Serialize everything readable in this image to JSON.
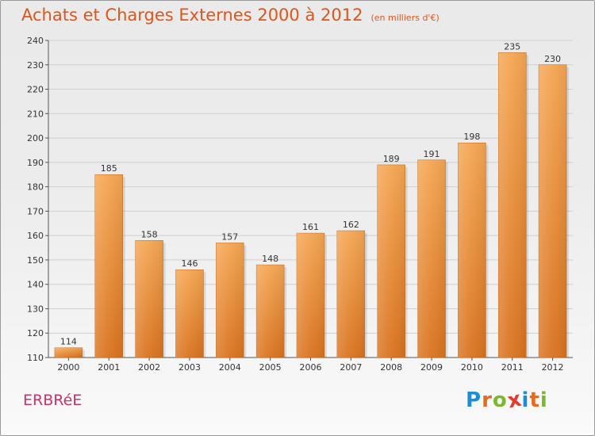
{
  "title": "Achats et Charges Externes 2000 à 2012",
  "subtitle": "(en milliers d'€)",
  "town": "ERBRéE",
  "logo": {
    "text": "Proxiti",
    "letters": [
      {
        "ch": "P",
        "color": "#1a8fd6"
      },
      {
        "ch": "r",
        "color": "#e86a1c"
      },
      {
        "ch": "o",
        "color": "#7cb82f"
      },
      {
        "ch": "x",
        "color": "#e33b2f"
      },
      {
        "ch": "i",
        "color": "#1a8fd6"
      },
      {
        "ch": "t",
        "color": "#e86a1c"
      },
      {
        "ch": "i",
        "color": "#7cb82f"
      }
    ]
  },
  "colors": {
    "bar_light": "#f5a653",
    "bar_dark": "#d9731f",
    "title": "#e05518",
    "town": "#cc3366",
    "grid": "#cfcfcf"
  },
  "chart_data": {
    "type": "bar",
    "categories": [
      "2000",
      "2001",
      "2002",
      "2003",
      "2004",
      "2005",
      "2006",
      "2007",
      "2008",
      "2009",
      "2010",
      "2011",
      "2012"
    ],
    "values": [
      114,
      185,
      158,
      146,
      157,
      148,
      161,
      162,
      189,
      191,
      198,
      235,
      230
    ],
    "title": "Achats et Charges Externes 2000 à 2012",
    "subtitle": "(en milliers d'€)",
    "xlabel": "",
    "ylabel": "",
    "ylim": [
      110,
      240
    ],
    "yticks": [
      110,
      120,
      130,
      140,
      150,
      160,
      170,
      180,
      190,
      200,
      210,
      220,
      230,
      240
    ],
    "grid": true,
    "legend": "none"
  }
}
